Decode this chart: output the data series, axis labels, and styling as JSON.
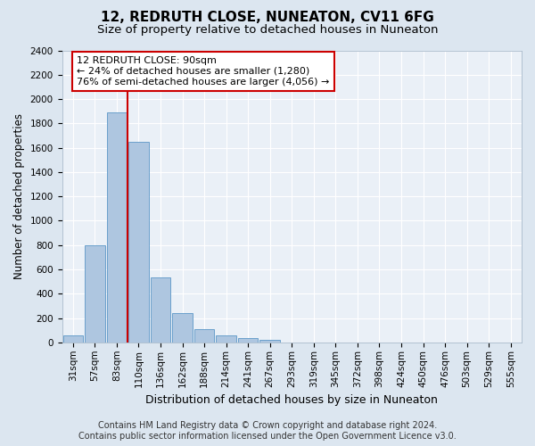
{
  "title": "12, REDRUTH CLOSE, NUNEATON, CV11 6FG",
  "subtitle": "Size of property relative to detached houses in Nuneaton",
  "xlabel": "Distribution of detached houses by size in Nuneaton",
  "ylabel": "Number of detached properties",
  "categories": [
    "31sqm",
    "57sqm",
    "83sqm",
    "110sqm",
    "136sqm",
    "162sqm",
    "188sqm",
    "214sqm",
    "241sqm",
    "267sqm",
    "293sqm",
    "319sqm",
    "345sqm",
    "372sqm",
    "398sqm",
    "424sqm",
    "450sqm",
    "476sqm",
    "503sqm",
    "529sqm",
    "555sqm"
  ],
  "values": [
    60,
    800,
    1890,
    1650,
    535,
    240,
    110,
    60,
    35,
    20,
    0,
    0,
    0,
    0,
    0,
    0,
    0,
    0,
    0,
    0,
    0
  ],
  "bar_color": "#aec6e0",
  "bar_edge_color": "#6aa0cc",
  "vline_color": "#cc0000",
  "annotation_text": "12 REDRUTH CLOSE: 90sqm\n← 24% of detached houses are smaller (1,280)\n76% of semi-detached houses are larger (4,056) →",
  "annotation_box_color": "#ffffff",
  "annotation_box_edge": "#cc0000",
  "ylim": [
    0,
    2400
  ],
  "yticks": [
    0,
    200,
    400,
    600,
    800,
    1000,
    1200,
    1400,
    1600,
    1800,
    2000,
    2200,
    2400
  ],
  "footer_line1": "Contains HM Land Registry data © Crown copyright and database right 2024.",
  "footer_line2": "Contains public sector information licensed under the Open Government Licence v3.0.",
  "background_color": "#dce6f0",
  "plot_bg_color": "#eaf0f7",
  "grid_color": "#ffffff",
  "title_fontsize": 11,
  "subtitle_fontsize": 9.5,
  "tick_fontsize": 7.5,
  "ylabel_fontsize": 8.5,
  "xlabel_fontsize": 9,
  "footer_fontsize": 7,
  "annotation_fontsize": 8,
  "vline_x_index": 2.48
}
